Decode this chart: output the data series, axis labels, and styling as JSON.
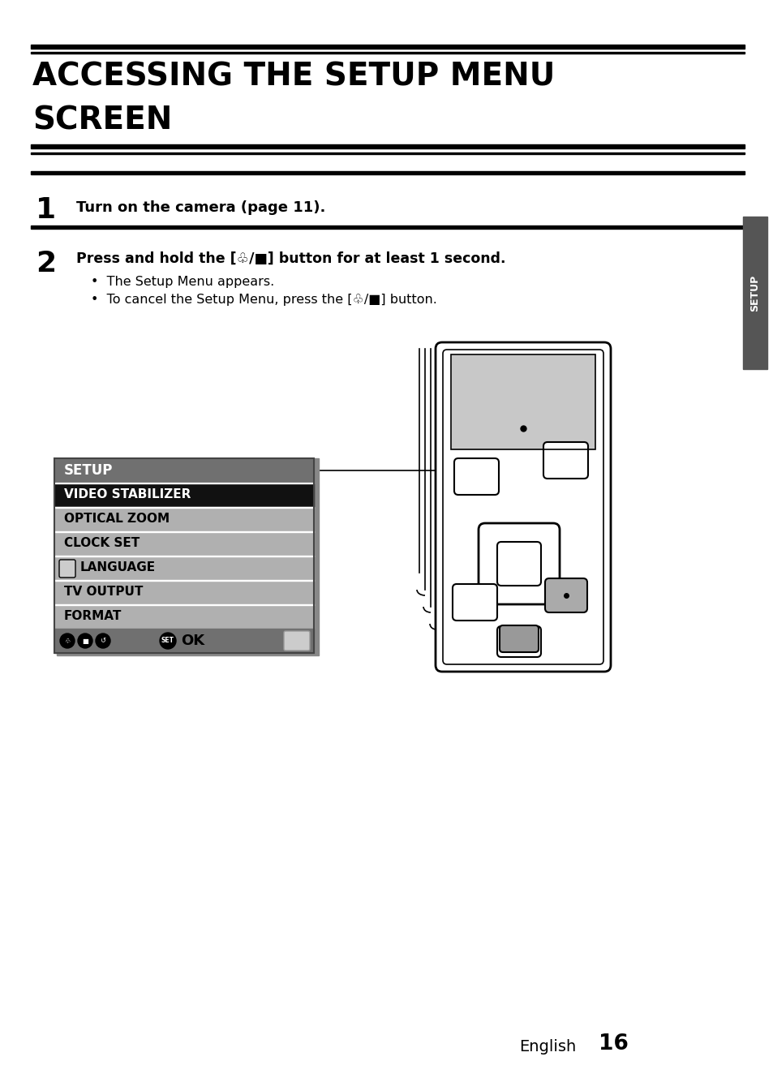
{
  "title_line1": "ACCESSING THE SETUP MENU",
  "title_line2": "SCREEN",
  "step1_num": "1",
  "step1_text": "Turn on the camera (page 11).",
  "step2_num": "2",
  "step2_bold": "Press and hold the [♧/■] button for at least 1 second.",
  "step2_bullet1": "•  The Setup Menu appears.",
  "step2_bullet2": "•  To cancel the Setup Menu, press the [♧/■] button.",
  "menu_title": "SETUP",
  "menu_items": [
    "VIDEO STABILIZER",
    "OPTICAL ZOOM",
    "CLOCK SET",
    "LANGUAGE",
    "TV OUTPUT",
    "FORMAT"
  ],
  "menu_selected_idx": 0,
  "sidebar_text": "SETUP",
  "footer_lang": "English",
  "footer_num": "16",
  "bg_color": "#ffffff",
  "menu_header_bg": "#707070",
  "menu_selected_bg": "#111111",
  "menu_row_bg": "#b0b0b0",
  "menu_row_bg_dark": "#aaaaaa",
  "menu_bottom_bg": "#707070",
  "sidebar_bg": "#555555",
  "camera_label": "[♧/■] button"
}
